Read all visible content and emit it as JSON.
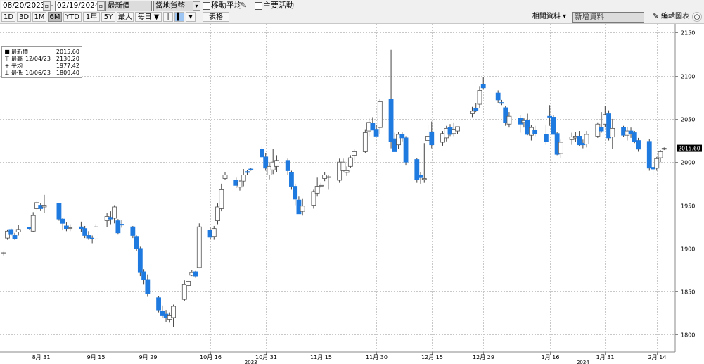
{
  "toolbar": {
    "start_date": "08/20/2023",
    "end_date": "02/19/2024",
    "price_field": "最新價",
    "currency": "當地貨幣",
    "moving_avg_label": "移動平均",
    "major_events_label": "主要活動",
    "periods": [
      "1D",
      "3D",
      "1M",
      "6M",
      "YTD",
      "1年",
      "5Y",
      "最大",
      "每日 ▼"
    ],
    "active_period": "6M",
    "table_label": "表格",
    "related_label": "相關資料 ▾",
    "add_data_placeholder": "新增資料",
    "edit_chart_label": "編輯圖表"
  },
  "legend": {
    "rows": [
      {
        "name": "最新價",
        "date": "",
        "value": "2015.60"
      },
      {
        "name": "最高",
        "date": "12/04/23",
        "value": "2130.20"
      },
      {
        "name": "平均",
        "date": "",
        "value": "1977.42"
      },
      {
        "name": "最低",
        "date": "10/06/23",
        "value": "1809.40"
      }
    ]
  },
  "last_price_tag": "2015.60",
  "colors": {
    "up_candle": "#ffffff",
    "down_candle": "#1f7ae0",
    "wick": "#444444",
    "grid": "#c8c8c8"
  },
  "chart_data": {
    "type": "candlestick",
    "title": "",
    "xlabel": "",
    "ylabel": "",
    "ylim": [
      1780,
      2160
    ],
    "y_ticks": [
      1800,
      1850,
      1900,
      1950,
      2000,
      2050,
      2100,
      2150
    ],
    "x_ticks": [
      {
        "date": "2023-08-31",
        "label": "8月 31"
      },
      {
        "date": "2023-09-15",
        "label": "9月 15"
      },
      {
        "date": "2023-09-29",
        "label": "9月 29"
      },
      {
        "date": "2023-10-16",
        "label": "10月 16"
      },
      {
        "date": "2023-10-31",
        "label": "10月 31"
      },
      {
        "date": "2023-11-15",
        "label": "11月 15"
      },
      {
        "date": "2023-11-30",
        "label": "11月 30"
      },
      {
        "date": "2023-12-15",
        "label": "12月 15"
      },
      {
        "date": "2023-12-29",
        "label": "12月 29"
      },
      {
        "date": "2024-01-16",
        "label": "1月 16"
      },
      {
        "date": "2024-01-31",
        "label": "1月 31"
      },
      {
        "date": "2024-02-14",
        "label": "2月 14"
      }
    ],
    "year_labels": [
      {
        "date": "2023-10-27",
        "label": "2023"
      },
      {
        "date": "2024-01-25",
        "label": "2024"
      }
    ],
    "candles": [
      {
        "date": "2023-08-21",
        "o": 1894,
        "h": 1896,
        "l": 1892,
        "c": 1895
      },
      {
        "date": "2023-08-22",
        "o": 1912,
        "h": 1922,
        "l": 1910,
        "c": 1920
      },
      {
        "date": "2023-08-23",
        "o": 1922,
        "h": 1923,
        "l": 1915,
        "c": 1916
      },
      {
        "date": "2023-08-24",
        "o": 1915,
        "h": 1918,
        "l": 1910,
        "c": 1911
      },
      {
        "date": "2023-08-25",
        "o": 1919,
        "h": 1927,
        "l": 1915,
        "c": 1922
      },
      {
        "date": "2023-08-28",
        "o": 1924,
        "h": 1924,
        "l": 1922,
        "c": 1923
      },
      {
        "date": "2023-08-29",
        "o": 1920,
        "h": 1942,
        "l": 1919,
        "c": 1938
      },
      {
        "date": "2023-08-30",
        "o": 1946,
        "h": 1955,
        "l": 1944,
        "c": 1953
      },
      {
        "date": "2023-08-31",
        "o": 1950,
        "h": 1952,
        "l": 1944,
        "c": 1946
      },
      {
        "date": "2023-09-01",
        "o": 1948,
        "h": 1962,
        "l": 1941,
        "c": 1950
      },
      {
        "date": "2023-09-05",
        "o": 1952,
        "h": 1952,
        "l": 1932,
        "c": 1934
      },
      {
        "date": "2023-09-06",
        "o": 1934,
        "h": 1935,
        "l": 1921,
        "c": 1929
      },
      {
        "date": "2023-09-07",
        "o": 1926,
        "h": 1930,
        "l": 1920,
        "c": 1923
      },
      {
        "date": "2023-09-08",
        "o": 1923,
        "h": 1928,
        "l": 1920,
        "c": 1924
      },
      {
        "date": "2023-09-11",
        "o": 1925,
        "h": 1931,
        "l": 1919,
        "c": 1923
      },
      {
        "date": "2023-09-12",
        "o": 1923,
        "h": 1926,
        "l": 1912,
        "c": 1915
      },
      {
        "date": "2023-09-13",
        "o": 1915,
        "h": 1920,
        "l": 1910,
        "c": 1912
      },
      {
        "date": "2023-09-14",
        "o": 1912,
        "h": 1915,
        "l": 1906,
        "c": 1911
      },
      {
        "date": "2023-09-15",
        "o": 1911,
        "h": 1928,
        "l": 1910,
        "c": 1925
      },
      {
        "date": "2023-09-18",
        "o": 1932,
        "h": 1941,
        "l": 1925,
        "c": 1937
      },
      {
        "date": "2023-09-19",
        "o": 1936,
        "h": 1943,
        "l": 1928,
        "c": 1934
      },
      {
        "date": "2023-09-20",
        "o": 1935,
        "h": 1950,
        "l": 1929,
        "c": 1948
      },
      {
        "date": "2023-09-21",
        "o": 1932,
        "h": 1934,
        "l": 1916,
        "c": 1918
      },
      {
        "date": "2023-09-22",
        "o": 1928,
        "h": 1933,
        "l": 1924,
        "c": 1927
      },
      {
        "date": "2023-09-25",
        "o": 1925,
        "h": 1926,
        "l": 1912,
        "c": 1915
      },
      {
        "date": "2023-09-26",
        "o": 1914,
        "h": 1915,
        "l": 1897,
        "c": 1900
      },
      {
        "date": "2023-09-27",
        "o": 1900,
        "h": 1902,
        "l": 1868,
        "c": 1872
      },
      {
        "date": "2023-09-28",
        "o": 1873,
        "h": 1876,
        "l": 1858,
        "c": 1864
      },
      {
        "date": "2023-09-29",
        "o": 1864,
        "h": 1870,
        "l": 1844,
        "c": 1848
      },
      {
        "date": "2023-10-02",
        "o": 1843,
        "h": 1845,
        "l": 1826,
        "c": 1828
      },
      {
        "date": "2023-10-03",
        "o": 1827,
        "h": 1834,
        "l": 1820,
        "c": 1822
      },
      {
        "date": "2023-10-04",
        "o": 1824,
        "h": 1828,
        "l": 1815,
        "c": 1820
      },
      {
        "date": "2023-10-05",
        "o": 1818,
        "h": 1826,
        "l": 1814,
        "c": 1822
      },
      {
        "date": "2023-10-06",
        "o": 1820,
        "h": 1835,
        "l": 1809,
        "c": 1833
      },
      {
        "date": "2023-10-09",
        "o": 1841,
        "h": 1863,
        "l": 1839,
        "c": 1858
      },
      {
        "date": "2023-10-10",
        "o": 1857,
        "h": 1864,
        "l": 1855,
        "c": 1862
      },
      {
        "date": "2023-10-11",
        "o": 1869,
        "h": 1875,
        "l": 1868,
        "c": 1872
      },
      {
        "date": "2023-10-12",
        "o": 1873,
        "h": 1874,
        "l": 1866,
        "c": 1868
      },
      {
        "date": "2023-10-13",
        "o": 1878,
        "h": 1929,
        "l": 1877,
        "c": 1925
      },
      {
        "date": "2023-10-16",
        "o": 1921,
        "h": 1924,
        "l": 1910,
        "c": 1913
      },
      {
        "date": "2023-10-17",
        "o": 1914,
        "h": 1926,
        "l": 1910,
        "c": 1923
      },
      {
        "date": "2023-10-18",
        "o": 1932,
        "h": 1952,
        "l": 1928,
        "c": 1948
      },
      {
        "date": "2023-10-19",
        "o": 1946,
        "h": 1975,
        "l": 1943,
        "c": 1968
      },
      {
        "date": "2023-10-20",
        "o": 1981,
        "h": 1988,
        "l": 1979,
        "c": 1985
      },
      {
        "date": "2023-10-23",
        "o": 1979,
        "h": 1982,
        "l": 1970,
        "c": 1973
      },
      {
        "date": "2023-10-24",
        "o": 1971,
        "h": 1979,
        "l": 1967,
        "c": 1977
      },
      {
        "date": "2023-10-25",
        "o": 1978,
        "h": 1992,
        "l": 1972,
        "c": 1985
      },
      {
        "date": "2023-10-26",
        "o": 1989,
        "h": 1991,
        "l": 1985,
        "c": 1988
      },
      {
        "date": "2023-10-27",
        "o": 1992,
        "h": 1993,
        "l": 1990,
        "c": 1991
      },
      {
        "date": "2023-10-30",
        "o": 2015,
        "h": 2018,
        "l": 2004,
        "c": 2006
      },
      {
        "date": "2023-10-31",
        "o": 2006,
        "h": 2010,
        "l": 1990,
        "c": 1993
      },
      {
        "date": "2023-11-01",
        "o": 1985,
        "h": 2000,
        "l": 1980,
        "c": 1995
      },
      {
        "date": "2023-11-02",
        "o": 1991,
        "h": 2015,
        "l": 1986,
        "c": 2000
      },
      {
        "date": "2023-11-03",
        "o": 1995,
        "h": 2008,
        "l": 1988,
        "c": 2002
      },
      {
        "date": "2023-11-06",
        "o": 2002,
        "h": 2004,
        "l": 1985,
        "c": 1990
      },
      {
        "date": "2023-11-07",
        "o": 1988,
        "h": 1990,
        "l": 1968,
        "c": 1972
      },
      {
        "date": "2023-11-08",
        "o": 1972,
        "h": 1975,
        "l": 1950,
        "c": 1957
      },
      {
        "date": "2023-11-09",
        "o": 1956,
        "h": 1960,
        "l": 1940,
        "c": 1940
      },
      {
        "date": "2023-11-10",
        "o": 1943,
        "h": 1958,
        "l": 1938,
        "c": 1949
      },
      {
        "date": "2023-11-13",
        "o": 1950,
        "h": 1968,
        "l": 1946,
        "c": 1966
      },
      {
        "date": "2023-11-14",
        "o": 1964,
        "h": 1982,
        "l": 1960,
        "c": 1972
      },
      {
        "date": "2023-11-15",
        "o": 1973,
        "h": 1976,
        "l": 1970,
        "c": 1973
      },
      {
        "date": "2023-11-16",
        "o": 1981,
        "h": 1988,
        "l": 1978,
        "c": 1985
      },
      {
        "date": "2023-11-17",
        "o": 1983,
        "h": 1985,
        "l": 1968,
        "c": 1983
      },
      {
        "date": "2023-11-20",
        "o": 1979,
        "h": 2004,
        "l": 1976,
        "c": 2000
      },
      {
        "date": "2023-11-21",
        "o": 1990,
        "h": 2004,
        "l": 1988,
        "c": 2000
      },
      {
        "date": "2023-11-22",
        "o": 1988,
        "h": 1995,
        "l": 1984,
        "c": 1990
      },
      {
        "date": "2023-11-23",
        "o": 1995,
        "h": 2008,
        "l": 1993,
        "c": 2005
      },
      {
        "date": "2023-11-24",
        "o": 2008,
        "h": 2015,
        "l": 2002,
        "c": 2012
      },
      {
        "date": "2023-11-27",
        "o": 2012,
        "h": 2038,
        "l": 2010,
        "c": 2034
      },
      {
        "date": "2023-11-28",
        "o": 2036,
        "h": 2051,
        "l": 2030,
        "c": 2046
      },
      {
        "date": "2023-11-29",
        "o": 2045,
        "h": 2052,
        "l": 2038,
        "c": 2037
      },
      {
        "date": "2023-11-30",
        "o": 2038,
        "h": 2043,
        "l": 2030,
        "c": 2030
      },
      {
        "date": "2023-12-01",
        "o": 2040,
        "h": 2073,
        "l": 2032,
        "c": 2070
      },
      {
        "date": "2023-12-04",
        "o": 2073,
        "h": 2130,
        "l": 2016,
        "c": 2024
      },
      {
        "date": "2023-12-05",
        "o": 2027,
        "h": 2034,
        "l": 2012,
        "c": 2012
      },
      {
        "date": "2023-12-06",
        "o": 2020,
        "h": 2035,
        "l": 2015,
        "c": 2032
      },
      {
        "date": "2023-12-07",
        "o": 2032,
        "h": 2035,
        "l": 2024,
        "c": 2028
      },
      {
        "date": "2023-12-08",
        "o": 2028,
        "h": 2030,
        "l": 1996,
        "c": 2000
      },
      {
        "date": "2023-12-11",
        "o": 2003,
        "h": 2005,
        "l": 1976,
        "c": 1980
      },
      {
        "date": "2023-12-12",
        "o": 1985,
        "h": 1988,
        "l": 1975,
        "c": 1982
      },
      {
        "date": "2023-12-13",
        "o": 1980,
        "h": 2022,
        "l": 1976,
        "c": 1981
      },
      {
        "date": "2023-12-14",
        "o": 2025,
        "h": 2043,
        "l": 2022,
        "c": 2030
      },
      {
        "date": "2023-12-15",
        "o": 2035,
        "h": 2047,
        "l": 2016,
        "c": 2020
      },
      {
        "date": "2023-12-18",
        "o": 2023,
        "h": 2036,
        "l": 2019,
        "c": 2033
      },
      {
        "date": "2023-12-19",
        "o": 2028,
        "h": 2042,
        "l": 2024,
        "c": 2039
      },
      {
        "date": "2023-12-20",
        "o": 2040,
        "h": 2044,
        "l": 2030,
        "c": 2032
      },
      {
        "date": "2023-12-21",
        "o": 2033,
        "h": 2046,
        "l": 2030,
        "c": 2038
      },
      {
        "date": "2023-12-22",
        "o": 2036,
        "h": 2041,
        "l": 2032,
        "c": 2041
      },
      {
        "date": "2023-12-26",
        "o": 2056,
        "h": 2064,
        "l": 2052,
        "c": 2059
      },
      {
        "date": "2023-12-27",
        "o": 2062,
        "h": 2068,
        "l": 2058,
        "c": 2060
      },
      {
        "date": "2023-12-28",
        "o": 2067,
        "h": 2088,
        "l": 2063,
        "c": 2083
      },
      {
        "date": "2023-12-29",
        "o": 2090,
        "h": 2098,
        "l": 2084,
        "c": 2086
      },
      {
        "date": "2024-01-02",
        "o": 2080,
        "h": 2083,
        "l": 2068,
        "c": 2072
      },
      {
        "date": "2024-01-03",
        "o": 2069,
        "h": 2072,
        "l": 2066,
        "c": 2068
      },
      {
        "date": "2024-01-04",
        "o": 2063,
        "h": 2065,
        "l": 2042,
        "c": 2046
      },
      {
        "date": "2024-01-05",
        "o": 2044,
        "h": 2058,
        "l": 2040,
        "c": 2053
      },
      {
        "date": "2024-01-08",
        "o": 2051,
        "h": 2054,
        "l": 2034,
        "c": 2044
      },
      {
        "date": "2024-01-09",
        "o": 2046,
        "h": 2051,
        "l": 2040,
        "c": 2048
      },
      {
        "date": "2024-01-10",
        "o": 2048,
        "h": 2056,
        "l": 2031,
        "c": 2032
      },
      {
        "date": "2024-01-11",
        "o": 2031,
        "h": 2043,
        "l": 2025,
        "c": 2040
      },
      {
        "date": "2024-01-12",
        "o": 2037,
        "h": 2042,
        "l": 2030,
        "c": 2033
      },
      {
        "date": "2024-01-15",
        "o": 2032,
        "h": 2043,
        "l": 2020,
        "c": 2024
      },
      {
        "date": "2024-01-16",
        "o": 2053,
        "h": 2066,
        "l": 2042,
        "c": 2052
      },
      {
        "date": "2024-01-17",
        "o": 2052,
        "h": 2054,
        "l": 2034,
        "c": 2032
      },
      {
        "date": "2024-01-18",
        "o": 2033,
        "h": 2035,
        "l": 2008,
        "c": 2009
      },
      {
        "date": "2024-01-19",
        "o": 2010,
        "h": 2026,
        "l": 2005,
        "c": 2023
      },
      {
        "date": "2024-01-22",
        "o": 2026,
        "h": 2034,
        "l": 2020,
        "c": 2029
      },
      {
        "date": "2024-01-23",
        "o": 2028,
        "h": 2035,
        "l": 2023,
        "c": 2030
      },
      {
        "date": "2024-01-24",
        "o": 2030,
        "h": 2036,
        "l": 2019,
        "c": 2020
      },
      {
        "date": "2024-01-25",
        "o": 2022,
        "h": 2026,
        "l": 2016,
        "c": 2020
      },
      {
        "date": "2024-01-26",
        "o": 2021,
        "h": 2036,
        "l": 2017,
        "c": 2032
      },
      {
        "date": "2024-01-29",
        "o": 2030,
        "h": 2046,
        "l": 2028,
        "c": 2044
      },
      {
        "date": "2024-01-30",
        "o": 2040,
        "h": 2058,
        "l": 2034,
        "c": 2036
      },
      {
        "date": "2024-01-31",
        "o": 2044,
        "h": 2065,
        "l": 2040,
        "c": 2055
      },
      {
        "date": "2024-02-01",
        "o": 2056,
        "h": 2060,
        "l": 2025,
        "c": 2028
      },
      {
        "date": "2024-02-02",
        "o": 2029,
        "h": 2050,
        "l": 2015,
        "c": 2039
      },
      {
        "date": "2024-02-05",
        "o": 2040,
        "h": 2042,
        "l": 2029,
        "c": 2031
      },
      {
        "date": "2024-02-06",
        "o": 2031,
        "h": 2041,
        "l": 2025,
        "c": 2036
      },
      {
        "date": "2024-02-07",
        "o": 2036,
        "h": 2040,
        "l": 2028,
        "c": 2033
      },
      {
        "date": "2024-02-08",
        "o": 2034,
        "h": 2036,
        "l": 2022,
        "c": 2024
      },
      {
        "date": "2024-02-09",
        "o": 2025,
        "h": 2028,
        "l": 2012,
        "c": 2015
      },
      {
        "date": "2024-02-12",
        "o": 2024,
        "h": 2027,
        "l": 1990,
        "c": 1993
      },
      {
        "date": "2024-02-13",
        "o": 1994,
        "h": 1996,
        "l": 1984,
        "c": 1992
      },
      {
        "date": "2024-02-14",
        "o": 1993,
        "h": 2006,
        "l": 1990,
        "c": 2004
      },
      {
        "date": "2024-02-15",
        "o": 2005,
        "h": 2014,
        "l": 2000,
        "c": 2012
      },
      {
        "date": "2024-02-16",
        "o": 2015,
        "h": 2017,
        "l": 2014,
        "c": 2016
      }
    ]
  }
}
